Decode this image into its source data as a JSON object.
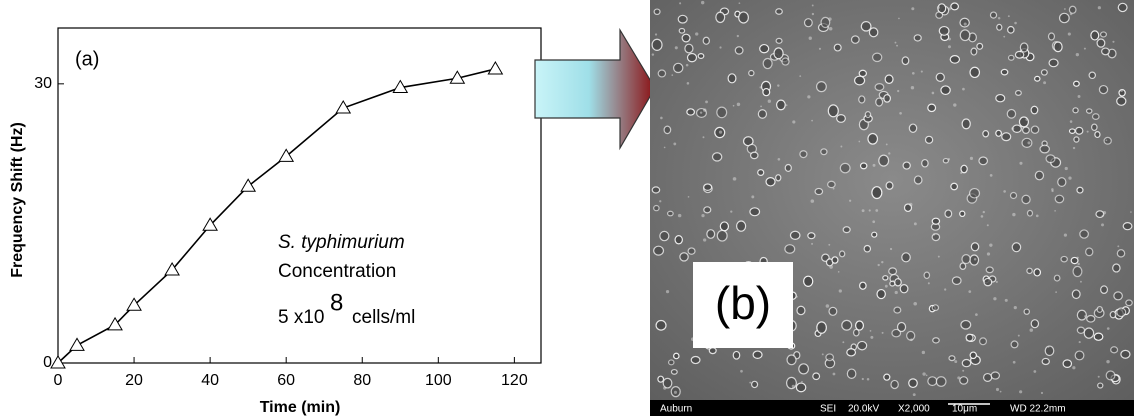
{
  "chart_data": {
    "type": "line",
    "x": [
      0,
      5,
      15,
      20,
      30,
      40,
      50,
      60,
      75,
      90,
      105,
      115
    ],
    "values": [
      0,
      1.9,
      4.1,
      6.2,
      10.0,
      14.8,
      19.0,
      22.2,
      27.4,
      29.6,
      30.6,
      31.6
    ],
    "color": "#000000",
    "xlim": [
      0,
      127
    ],
    "xticks": [
      0,
      20,
      40,
      60,
      80,
      100,
      120
    ],
    "ylim": [
      0,
      36
    ],
    "yticks": [
      0,
      30
    ],
    "xlabel": "Time (min)",
    "ylabel": "Frequency Shift (Hz)",
    "panel_label": "(a)",
    "annotations": [
      "S. typhimurium",
      "Concentration",
      "5 x10",
      "8",
      "cells/ml"
    ]
  },
  "micrograph": {
    "label": "(b)",
    "footer": [
      "Auburn",
      "SEI",
      "20.0kV",
      "X2,000",
      "10μm",
      "WD 22.2mm"
    ]
  }
}
